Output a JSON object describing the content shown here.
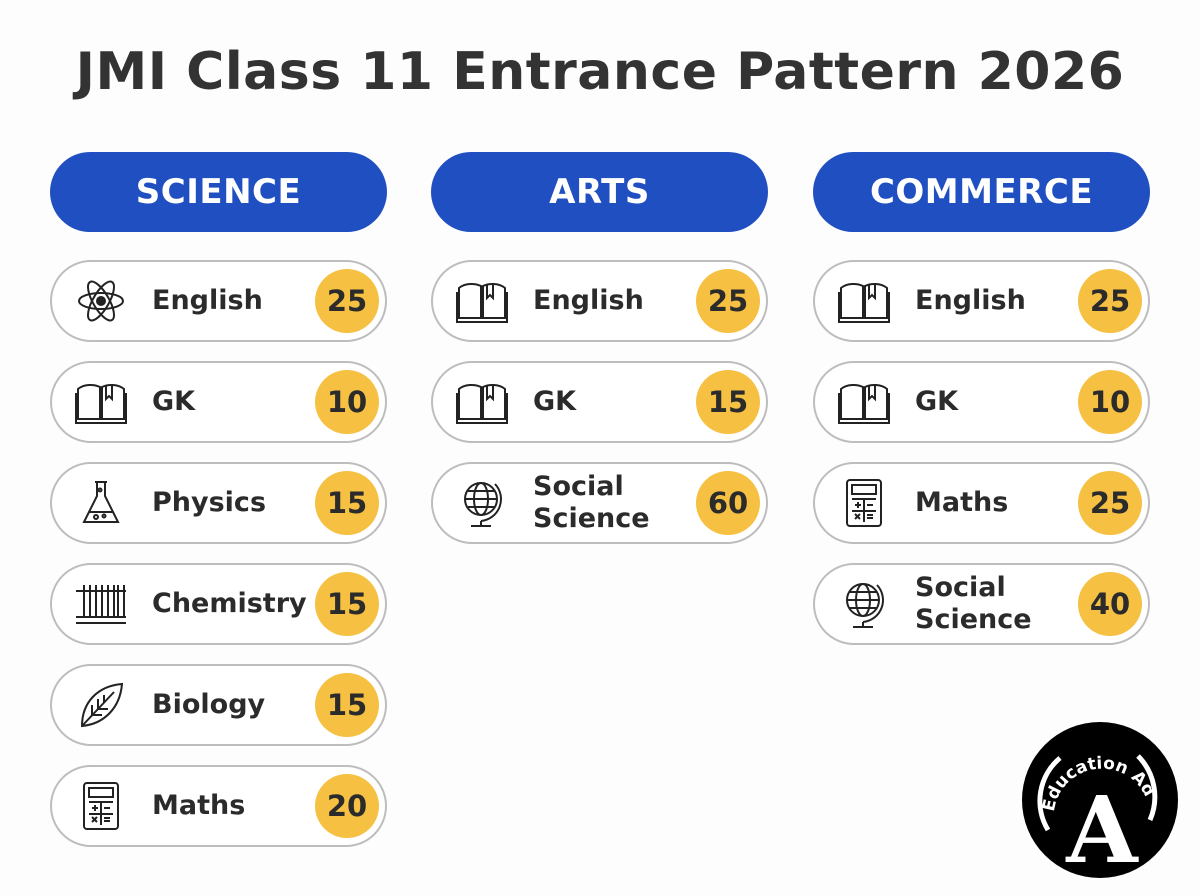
{
  "title": "JMI Class 11 Entrance Pattern 2026",
  "accent_color": "#1f4fc1",
  "badge_color": "#f6c142",
  "columns": [
    {
      "header": "SCIENCE",
      "rows": [
        {
          "icon": "atom-icon",
          "subject": "English",
          "marks": "25"
        },
        {
          "icon": "book-icon",
          "subject": "GK",
          "marks": "10"
        },
        {
          "icon": "flask-icon",
          "subject": "Physics",
          "marks": "15"
        },
        {
          "icon": "test-tubes-icon",
          "subject": "Chemistry",
          "marks": "15"
        },
        {
          "icon": "leaf-icon",
          "subject": "Biology",
          "marks": "15"
        },
        {
          "icon": "calculator-icon",
          "subject": "Maths",
          "marks": "20"
        }
      ]
    },
    {
      "header": "ARTS",
      "rows": [
        {
          "icon": "book-icon",
          "subject": "English",
          "marks": "25"
        },
        {
          "icon": "book-icon",
          "subject": "GK",
          "marks": "15"
        },
        {
          "icon": "globe-icon",
          "subject": "Social Science",
          "marks": "60"
        }
      ]
    },
    {
      "header": "COMMERCE",
      "rows": [
        {
          "icon": "book-icon",
          "subject": "English",
          "marks": "25"
        },
        {
          "icon": "book-icon",
          "subject": "GK",
          "marks": "10"
        },
        {
          "icon": "calculator-icon",
          "subject": "Maths",
          "marks": "25"
        },
        {
          "icon": "globe-icon",
          "subject": "Social Science",
          "marks": "40"
        }
      ]
    }
  ],
  "logo": {
    "text": "Education Adda",
    "letter": "A"
  }
}
